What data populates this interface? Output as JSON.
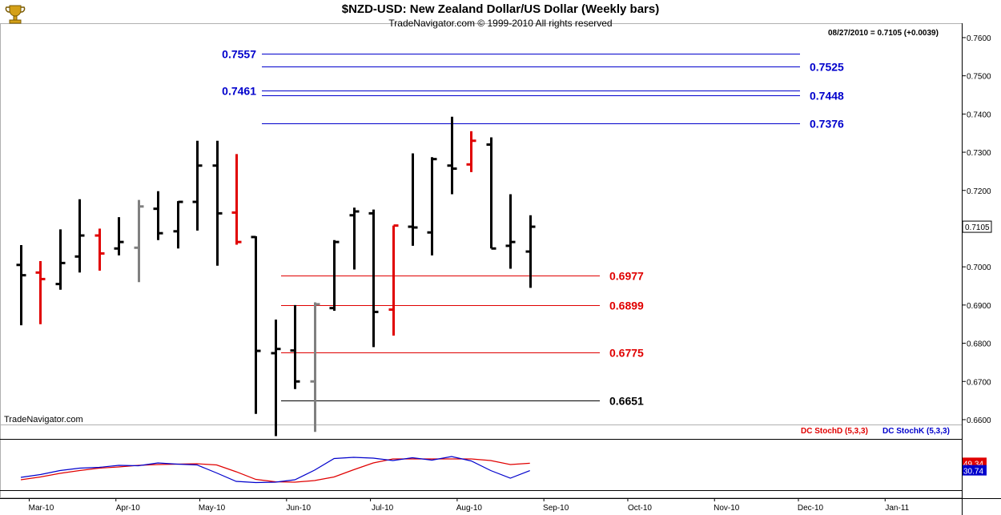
{
  "header": {
    "title": "$NZD-USD:  New Zealand Dollar/US Dollar  (Weekly bars)",
    "subtitle": "TradeNavigator.com © 1999-2010 All rights reserved",
    "quote": "08/27/2010 = 0.7105 (+0.0039)",
    "watermark": "TradeNavigator.com",
    "logo_icon": "trophy-icon"
  },
  "colors": {
    "up_bar": "#000000",
    "down_bar": "#e00000",
    "neutral_bar": "#808080",
    "resistance": "#0000cc",
    "support": "#cc0000",
    "base_line": "#000000",
    "stoch_d": "#e00000",
    "stoch_k": "#0000cc"
  },
  "chart_data": [
    {
      "type": "ohlc",
      "ylim": [
        0.655,
        0.76
      ],
      "y_ticks": [
        "0.7600",
        "0.7500",
        "0.7400",
        "0.7300",
        "0.7200",
        "0.7100",
        "0.7000",
        "0.6900",
        "0.6800",
        "0.6700",
        "0.6600"
      ],
      "x_ticks": [
        "Mar-10",
        "Apr-10",
        "May-10",
        "Jun-10",
        "Jul-10",
        "Aug-10",
        "Sep-10",
        "Oct-10",
        "Nov-10",
        "Dec-10",
        "Jan-11"
      ],
      "last_price_label": "0.7105",
      "bars": [
        {
          "date": "2010-02-26",
          "open": 0.7005,
          "high": 0.7057,
          "low": 0.6847,
          "close": 0.6978,
          "color": "black"
        },
        {
          "date": "2010-03-05",
          "open": 0.6985,
          "high": 0.7015,
          "low": 0.685,
          "close": 0.6968,
          "color": "red"
        },
        {
          "date": "2010-03-12",
          "open": 0.6955,
          "high": 0.7098,
          "low": 0.694,
          "close": 0.701,
          "color": "black"
        },
        {
          "date": "2010-03-19",
          "open": 0.7027,
          "high": 0.7177,
          "low": 0.6985,
          "close": 0.7082,
          "color": "black"
        },
        {
          "date": "2010-03-26",
          "open": 0.7082,
          "high": 0.71,
          "low": 0.699,
          "close": 0.7035,
          "color": "red"
        },
        {
          "date": "2010-04-02",
          "open": 0.7048,
          "high": 0.713,
          "low": 0.703,
          "close": 0.7065,
          "color": "black"
        },
        {
          "date": "2010-04-09",
          "open": 0.705,
          "high": 0.7175,
          "low": 0.696,
          "close": 0.7158,
          "color": "gray"
        },
        {
          "date": "2010-04-16",
          "open": 0.7152,
          "high": 0.7198,
          "low": 0.707,
          "close": 0.7088,
          "color": "black"
        },
        {
          "date": "2010-04-23",
          "open": 0.7093,
          "high": 0.7172,
          "low": 0.7048,
          "close": 0.717,
          "color": "black"
        },
        {
          "date": "2010-04-30",
          "open": 0.717,
          "high": 0.733,
          "low": 0.7095,
          "close": 0.7265,
          "color": "black"
        },
        {
          "date": "2010-05-07",
          "open": 0.7265,
          "high": 0.733,
          "low": 0.7003,
          "close": 0.714,
          "color": "black"
        },
        {
          "date": "2010-05-14",
          "open": 0.7142,
          "high": 0.7295,
          "low": 0.7058,
          "close": 0.7065,
          "color": "red"
        },
        {
          "date": "2010-05-21",
          "open": 0.7078,
          "high": 0.708,
          "low": 0.6615,
          "close": 0.678,
          "color": "black"
        },
        {
          "date": "2010-05-28",
          "open": 0.6774,
          "high": 0.6862,
          "low": 0.6557,
          "close": 0.6785,
          "color": "black"
        },
        {
          "date": "2010-06-04",
          "open": 0.6781,
          "high": 0.69,
          "low": 0.668,
          "close": 0.67,
          "color": "black"
        },
        {
          "date": "2010-06-11",
          "open": 0.67,
          "high": 0.6907,
          "low": 0.6568,
          "close": 0.6902,
          "color": "gray"
        },
        {
          "date": "2010-06-18",
          "open": 0.6892,
          "high": 0.707,
          "low": 0.6885,
          "close": 0.7065,
          "color": "black"
        },
        {
          "date": "2010-06-25",
          "open": 0.7135,
          "high": 0.7155,
          "low": 0.6993,
          "close": 0.7145,
          "color": "black"
        },
        {
          "date": "2010-07-02",
          "open": 0.714,
          "high": 0.715,
          "low": 0.679,
          "close": 0.6882,
          "color": "black"
        },
        {
          "date": "2010-07-09",
          "open": 0.6888,
          "high": 0.7108,
          "low": 0.682,
          "close": 0.7108,
          "color": "red"
        },
        {
          "date": "2010-07-16",
          "open": 0.7105,
          "high": 0.7297,
          "low": 0.7055,
          "close": 0.7103,
          "color": "black"
        },
        {
          "date": "2010-07-23",
          "open": 0.709,
          "high": 0.7287,
          "low": 0.703,
          "close": 0.7282,
          "color": "black"
        },
        {
          "date": "2010-07-30",
          "open": 0.7265,
          "high": 0.7393,
          "low": 0.719,
          "close": 0.7257,
          "color": "black"
        },
        {
          "date": "2010-08-06",
          "open": 0.7268,
          "high": 0.7355,
          "low": 0.7248,
          "close": 0.733,
          "color": "red"
        },
        {
          "date": "2010-08-13",
          "open": 0.732,
          "high": 0.7339,
          "low": 0.7048,
          "close": 0.7048,
          "color": "black"
        },
        {
          "date": "2010-08-20",
          "open": 0.7055,
          "high": 0.719,
          "low": 0.6995,
          "close": 0.7065,
          "color": "black"
        },
        {
          "date": "2010-08-27",
          "open": 0.704,
          "high": 0.7135,
          "low": 0.6945,
          "close": 0.7105,
          "color": "black"
        }
      ],
      "levels": [
        {
          "value": 0.7557,
          "label": "0.7557",
          "color": "blue",
          "label_side": "left"
        },
        {
          "value": 0.7525,
          "label": "0.7525",
          "color": "blue",
          "label_side": "right"
        },
        {
          "value": 0.7461,
          "label": "0.7461",
          "color": "blue",
          "label_side": "left"
        },
        {
          "value": 0.7448,
          "label": "0.7448",
          "color": "blue",
          "label_side": "right"
        },
        {
          "value": 0.7376,
          "label": "0.7376",
          "color": "blue",
          "label_side": "right"
        },
        {
          "value": 0.6977,
          "label": "0.6977",
          "color": "red",
          "label_side": "right"
        },
        {
          "value": 0.6899,
          "label": "0.6899",
          "color": "red",
          "label_side": "right"
        },
        {
          "value": 0.6775,
          "label": "0.6775",
          "color": "red",
          "label_side": "right"
        },
        {
          "value": 0.6651,
          "label": "0.6651",
          "color": "black",
          "label_side": "right"
        }
      ]
    },
    {
      "type": "line",
      "ylim": [
        0,
        100
      ],
      "series": [
        {
          "name": "DC StochD (5,3,3)",
          "color": "red",
          "last_label": "49.34",
          "values": [
            8,
            15,
            24,
            31,
            37,
            40,
            44,
            46,
            47,
            48,
            45,
            28,
            9,
            3,
            2,
            6,
            15,
            33,
            50,
            60,
            60,
            60,
            60,
            60,
            56,
            46,
            49.3
          ]
        },
        {
          "name": "DC StochK (5,3,3)",
          "color": "blue",
          "last_label": "30.74",
          "values": [
            14,
            21,
            31,
            37,
            39,
            44,
            43,
            50,
            47,
            45,
            25,
            4,
            1,
            2,
            8,
            32,
            61,
            64,
            62,
            56,
            63,
            57,
            66,
            55,
            31,
            12,
            30.7
          ]
        }
      ]
    }
  ]
}
